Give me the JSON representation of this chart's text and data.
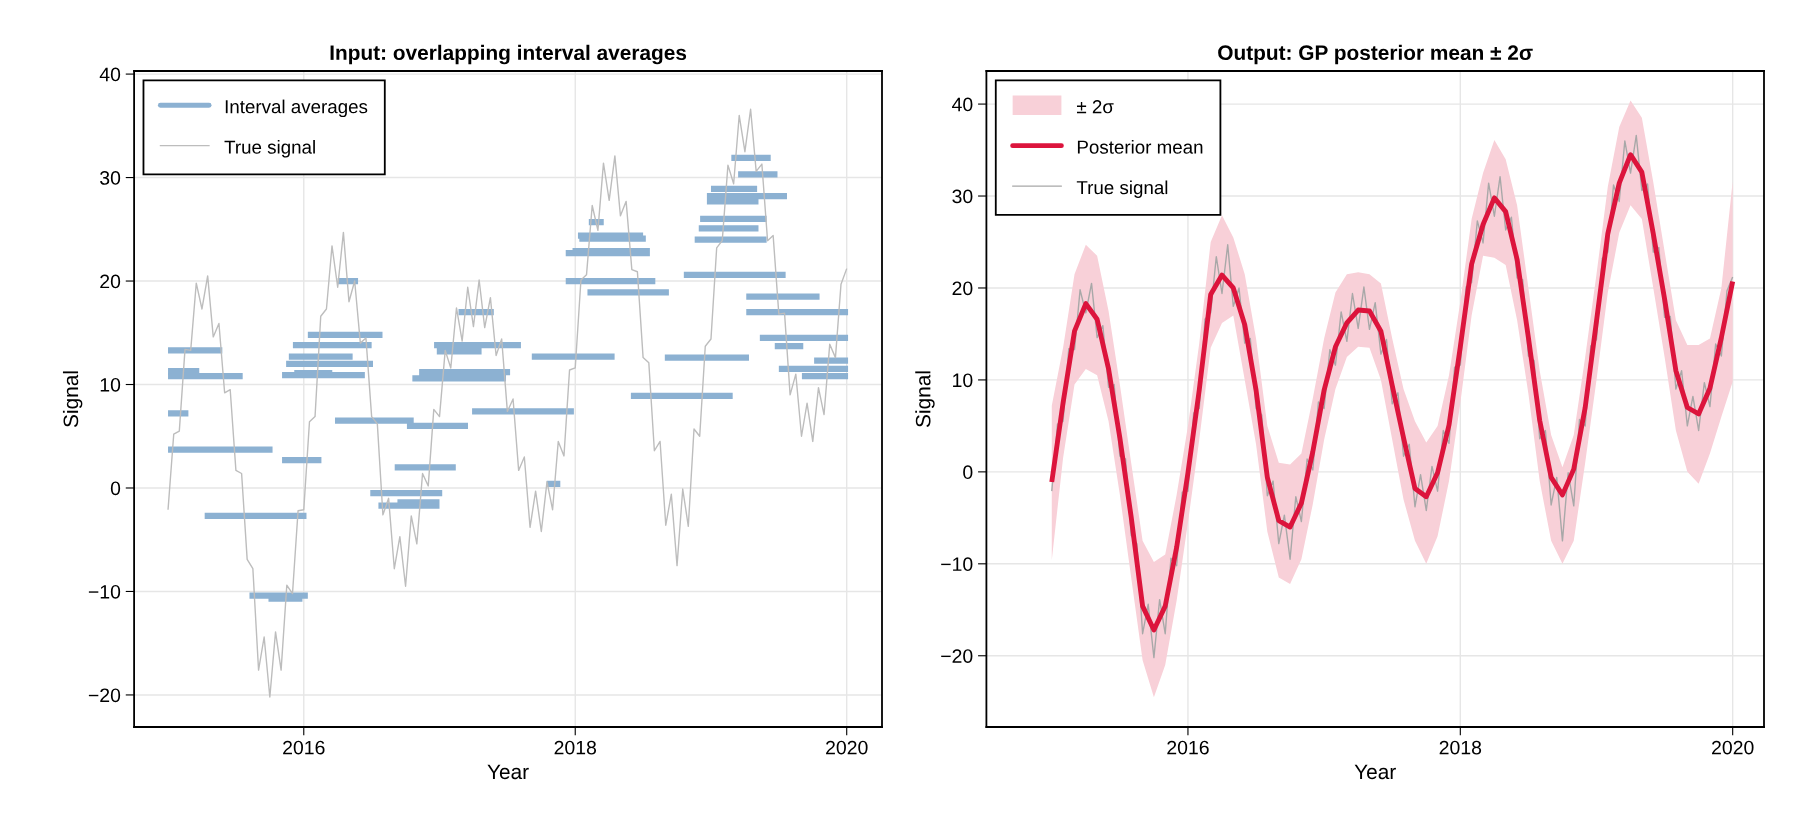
{
  "chart_data": [
    {
      "type": "line",
      "title": "Input: overlapping interval averages",
      "xlabel": "Year",
      "ylabel": "Signal",
      "xlim": [
        2014.75,
        2020.26
      ],
      "ylim": [
        -23.1,
        40.3
      ],
      "xticks": [
        2016,
        2018,
        2020
      ],
      "yticks": [
        -20,
        -10,
        0,
        10,
        20,
        30,
        40
      ],
      "grid": true,
      "legend": "top left",
      "series": [
        {
          "name": "Interval averages",
          "color": "#8cb1d2",
          "x": [
            2015.0,
            2015.4,
            null,
            2015.0,
            2015.23,
            null,
            2015.0,
            2015.55,
            null,
            2015.0,
            2015.15,
            null,
            2015.0,
            2015.77,
            null,
            2015.27,
            2016.02,
            null,
            2015.6,
            2016.03,
            null,
            2015.74,
            2015.99,
            null,
            2015.84,
            2016.13,
            null,
            2015.84,
            2016.45,
            null,
            2015.93,
            2016.21,
            null,
            2015.87,
            2016.51,
            null,
            2015.89,
            2016.36,
            null,
            2015.92,
            2016.5,
            null,
            2016.03,
            2016.58,
            null,
            2016.25,
            2016.4,
            null,
            2016.23,
            2016.81,
            null,
            2016.49,
            2017.02,
            null,
            2016.55,
            2017.0,
            null,
            2016.69,
            2017.0,
            null,
            2016.67,
            2017.12,
            null,
            2016.76,
            2017.21,
            null,
            2016.8,
            2017.49,
            null,
            2016.85,
            2017.52,
            null,
            2016.96,
            2017.6,
            null,
            2016.98,
            2017.31,
            null,
            2017.14,
            2017.4,
            null,
            2017.24,
            2017.99,
            null,
            2018.1,
            2018.21,
            null,
            2018.02,
            2018.5,
            null,
            2018.03,
            2018.52,
            null,
            2017.93,
            2018.55,
            null,
            2017.98,
            2018.55,
            null,
            2017.93,
            2018.59,
            null,
            2018.09,
            2018.69,
            null,
            2017.68,
            2018.29,
            null,
            2017.84,
            2018.18,
            null,
            2017.79,
            2017.89,
            null,
            2018.41,
            2019.16,
            null,
            2018.66,
            2019.28,
            null,
            2018.8,
            2019.55,
            null,
            2018.88,
            2019.41,
            null,
            2018.91,
            2019.35,
            null,
            2018.92,
            2019.41,
            null,
            2018.97,
            2019.56,
            null,
            2018.97,
            2019.35,
            null,
            2019.0,
            2019.34,
            null,
            2019.15,
            2019.44,
            null,
            2019.2,
            2019.49,
            null,
            2019.26,
            2019.8,
            null,
            2019.26,
            2020.01,
            null,
            2019.36,
            2020.01,
            null,
            2019.47,
            2019.68,
            null,
            2019.76,
            2020.01,
            null,
            2019.5,
            2020.01,
            null,
            2019.67,
            2020.01
          ],
          "values": [
            13.3,
            13.3,
            null,
            11.3,
            11.3,
            null,
            10.8,
            10.8,
            null,
            7.2,
            7.2,
            null,
            3.7,
            3.7,
            null,
            -2.7,
            -2.7,
            null,
            -10.4,
            -10.4,
            null,
            -10.7,
            -10.7,
            null,
            2.7,
            2.7,
            null,
            10.9,
            10.9,
            null,
            11.1,
            11.1,
            null,
            12.0,
            12.0,
            null,
            12.7,
            12.7,
            null,
            13.8,
            13.8,
            null,
            14.8,
            14.8,
            null,
            20.0,
            20.0,
            null,
            6.5,
            6.5,
            null,
            -0.5,
            -0.5,
            null,
            -1.7,
            -1.7,
            null,
            -1.4,
            -1.4,
            null,
            2.0,
            2.0,
            null,
            6.0,
            6.0,
            null,
            10.6,
            10.6,
            null,
            11.2,
            11.2,
            null,
            13.8,
            13.8,
            null,
            13.2,
            13.2,
            null,
            17.0,
            17.0,
            null,
            7.4,
            7.4,
            null,
            25.7,
            25.7,
            null,
            24.4,
            24.4,
            null,
            24.1,
            24.1,
            null,
            22.7,
            22.7,
            null,
            22.9,
            22.9,
            null,
            20.0,
            20.0,
            null,
            18.9,
            18.9,
            null,
            12.7,
            12.7,
            null,
            12.7,
            12.7,
            null,
            0.4,
            0.4,
            null,
            8.9,
            8.9,
            null,
            12.6,
            12.6,
            null,
            20.6,
            20.6,
            null,
            24.0,
            24.0,
            null,
            25.1,
            25.1,
            null,
            26.0,
            26.0,
            null,
            28.2,
            28.2,
            null,
            27.7,
            27.7,
            null,
            28.9,
            28.9,
            null,
            31.9,
            31.9,
            null,
            30.3,
            30.3,
            null,
            18.5,
            18.5,
            null,
            17.0,
            17.0,
            null,
            14.5,
            14.5,
            null,
            13.7,
            13.7,
            null,
            12.3,
            12.3,
            null,
            11.5,
            11.5,
            null,
            10.8,
            10.8
          ]
        },
        {
          "name": "True signal",
          "color": "#bdbdbd",
          "x": [
            2015.0,
            2015.042,
            2015.083,
            2015.125,
            2015.167,
            2015.208,
            2015.25,
            2015.292,
            2015.333,
            2015.375,
            2015.417,
            2015.458,
            2015.5,
            2015.542,
            2015.583,
            2015.625,
            2015.667,
            2015.708,
            2015.75,
            2015.792,
            2015.833,
            2015.875,
            2015.917,
            2015.958,
            2016.0,
            2016.042,
            2016.083,
            2016.125,
            2016.167,
            2016.208,
            2016.25,
            2016.292,
            2016.333,
            2016.375,
            2016.417,
            2016.458,
            2016.5,
            2016.542,
            2016.583,
            2016.625,
            2016.667,
            2016.708,
            2016.75,
            2016.792,
            2016.833,
            2016.875,
            2016.917,
            2016.958,
            2017.0,
            2017.042,
            2017.083,
            2017.125,
            2017.167,
            2017.208,
            2017.25,
            2017.292,
            2017.333,
            2017.375,
            2017.417,
            2017.458,
            2017.5,
            2017.542,
            2017.583,
            2017.625,
            2017.667,
            2017.708,
            2017.75,
            2017.792,
            2017.833,
            2017.875,
            2017.917,
            2017.958,
            2018.0,
            2018.042,
            2018.083,
            2018.125,
            2018.167,
            2018.208,
            2018.25,
            2018.292,
            2018.333,
            2018.375,
            2018.417,
            2018.458,
            2018.5,
            2018.542,
            2018.583,
            2018.625,
            2018.667,
            2018.708,
            2018.75,
            2018.792,
            2018.833,
            2018.875,
            2018.917,
            2018.958,
            2019.0,
            2019.042,
            2019.083,
            2019.125,
            2019.167,
            2019.208,
            2019.25,
            2019.292,
            2019.333,
            2019.375,
            2019.417,
            2019.458,
            2019.5,
            2019.542,
            2019.583,
            2019.625,
            2019.667,
            2019.708,
            2019.75,
            2019.792,
            2019.833,
            2019.875,
            2019.917,
            2019.958,
            2020.0
          ],
          "values": [
            -2.1,
            5.2,
            5.5,
            13.4,
            13.3,
            19.8,
            17.3,
            20.5,
            14.6,
            15.9,
            9.2,
            9.5,
            1.7,
            1.4,
            -6.9,
            -7.8,
            -17.6,
            -14.4,
            -20.2,
            -13.9,
            -17.6,
            -9.4,
            -10.2,
            -2.2,
            -2.1,
            6.4,
            6.9,
            16.6,
            17.3,
            23.4,
            19.4,
            24.7,
            18.0,
            20.0,
            14.0,
            14.5,
            6.9,
            6.2,
            -2.6,
            -1.0,
            -7.8,
            -4.7,
            -9.5,
            -2.7,
            -5.4,
            1.4,
            0.2,
            7.6,
            6.9,
            13.3,
            11.6,
            17.4,
            14.2,
            19.4,
            15.6,
            20.1,
            15.5,
            18.4,
            12.8,
            14.4,
            7.4,
            8.6,
            1.7,
            3.0,
            -3.8,
            -0.3,
            -4.2,
            0.6,
            -2.1,
            4.5,
            3.1,
            11.4,
            11.6,
            20.1,
            20.6,
            27.3,
            24.9,
            31.4,
            27.8,
            32.1,
            26.3,
            27.7,
            21.1,
            20.9,
            12.6,
            12.1,
            3.6,
            4.5,
            -3.6,
            -0.6,
            -7.5,
            -0.1,
            -3.7,
            5.7,
            5.0,
            13.7,
            14.4,
            23.2,
            23.9,
            31.2,
            29.4,
            36.0,
            32.5,
            36.6,
            30.6,
            31.3,
            23.9,
            24.4,
            16.8,
            16.9,
            9.0,
            11.0,
            5.0,
            8.2,
            4.5,
            9.7,
            7.1,
            13.9,
            12.6,
            19.7,
            21.2
          ]
        }
      ]
    },
    {
      "type": "line",
      "title": "Output: GP posterior mean ± 2σ",
      "xlabel": "Year",
      "ylabel": "Signal",
      "xlim": [
        2014.52,
        2020.23
      ],
      "ylim": [
        -27.75,
        43.6
      ],
      "xticks": [
        2016,
        2018,
        2020
      ],
      "yticks": [
        -20,
        -10,
        0,
        10,
        20,
        30,
        40
      ],
      "grid": true,
      "legend": "top left",
      "annotations": [
        "± 2σ"
      ],
      "series": [
        {
          "name": "Posterior mean",
          "color": "#dc143c",
          "x": [
            2015.0,
            2015.083,
            2015.167,
            2015.25,
            2015.333,
            2015.417,
            2015.5,
            2015.583,
            2015.667,
            2015.75,
            2015.833,
            2015.917,
            2016.0,
            2016.083,
            2016.167,
            2016.25,
            2016.333,
            2016.417,
            2016.5,
            2016.583,
            2016.667,
            2016.75,
            2016.833,
            2016.917,
            2017.0,
            2017.083,
            2017.167,
            2017.25,
            2017.333,
            2017.417,
            2017.5,
            2017.583,
            2017.667,
            2017.75,
            2017.833,
            2017.917,
            2018.0,
            2018.083,
            2018.167,
            2018.25,
            2018.333,
            2018.417,
            2018.5,
            2018.583,
            2018.667,
            2018.75,
            2018.833,
            2018.917,
            2019.0,
            2019.083,
            2019.167,
            2019.25,
            2019.333,
            2019.417,
            2019.5,
            2019.583,
            2019.667,
            2019.75,
            2019.833,
            2019.917,
            2020.0
          ],
          "values": [
            -1.1,
            7.5,
            15.3,
            18.3,
            16.6,
            11.2,
            3.7,
            -4.9,
            -14.6,
            -17.2,
            -14.6,
            -8.2,
            -0.1,
            8.9,
            19.3,
            21.4,
            20.0,
            16.0,
            8.9,
            -0.6,
            -5.3,
            -6.0,
            -3.4,
            2.2,
            8.9,
            13.6,
            16.2,
            17.6,
            17.5,
            15.3,
            9.4,
            3.7,
            -1.8,
            -2.7,
            -0.1,
            5.1,
            13.6,
            22.6,
            26.9,
            29.8,
            28.3,
            23.1,
            14.6,
            5.6,
            -0.6,
            -2.5,
            0.3,
            7.0,
            16.4,
            25.9,
            31.4,
            34.5,
            32.6,
            25.9,
            18.8,
            11.0,
            7.0,
            6.3,
            9.1,
            14.6,
            20.7
          ],
          "upper": [
            7.2,
            13.5,
            21.5,
            24.7,
            23.5,
            17.5,
            9.5,
            1.0,
            -7.5,
            -9.8,
            -9.0,
            -2.5,
            5.0,
            14.0,
            25.0,
            27.9,
            25.5,
            21.5,
            14.5,
            5.0,
            1.0,
            0.8,
            2.0,
            8.0,
            14.5,
            19.5,
            21.5,
            21.7,
            21.5,
            20.5,
            14.5,
            9.0,
            5.5,
            3.2,
            5.0,
            10.5,
            18.5,
            27.5,
            32.5,
            36.1,
            34.0,
            29.0,
            20.0,
            11.0,
            4.0,
            0.5,
            4.0,
            12.5,
            21.5,
            31.0,
            37.5,
            40.4,
            38.5,
            31.5,
            24.0,
            16.5,
            13.8,
            13.8,
            14.5,
            20.0,
            31.6
          ],
          "lower": [
            -9.6,
            1.5,
            9.5,
            11.2,
            10.5,
            5.5,
            -2.5,
            -11.5,
            -20.5,
            -24.5,
            -21.0,
            -14.0,
            -5.5,
            3.5,
            13.5,
            16.2,
            17.0,
            10.0,
            3.0,
            -6.5,
            -11.5,
            -12.2,
            -9.5,
            -3.5,
            3.5,
            9.0,
            12.5,
            13.6,
            13.5,
            10.0,
            3.5,
            -3.0,
            -7.5,
            -10.0,
            -7.0,
            -1.0,
            7.5,
            17.0,
            23.5,
            23.3,
            22.5,
            16.5,
            8.5,
            -1.0,
            -7.5,
            -10.0,
            -7.5,
            1.0,
            10.0,
            19.5,
            26.0,
            29.0,
            27.5,
            20.0,
            12.5,
            4.5,
            0.0,
            -1.3,
            2.0,
            6.0,
            9.8
          ]
        },
        {
          "name": "True signal",
          "color": "#a8a8a8",
          "x": [
            2015.0,
            2015.042,
            2015.083,
            2015.125,
            2015.167,
            2015.208,
            2015.25,
            2015.292,
            2015.333,
            2015.375,
            2015.417,
            2015.458,
            2015.5,
            2015.542,
            2015.583,
            2015.625,
            2015.667,
            2015.708,
            2015.75,
            2015.792,
            2015.833,
            2015.875,
            2015.917,
            2015.958,
            2016.0,
            2016.042,
            2016.083,
            2016.125,
            2016.167,
            2016.208,
            2016.25,
            2016.292,
            2016.333,
            2016.375,
            2016.417,
            2016.458,
            2016.5,
            2016.542,
            2016.583,
            2016.625,
            2016.667,
            2016.708,
            2016.75,
            2016.792,
            2016.833,
            2016.875,
            2016.917,
            2016.958,
            2017.0,
            2017.042,
            2017.083,
            2017.125,
            2017.167,
            2017.208,
            2017.25,
            2017.292,
            2017.333,
            2017.375,
            2017.417,
            2017.458,
            2017.5,
            2017.542,
            2017.583,
            2017.625,
            2017.667,
            2017.708,
            2017.75,
            2017.792,
            2017.833,
            2017.875,
            2017.917,
            2017.958,
            2018.0,
            2018.042,
            2018.083,
            2018.125,
            2018.167,
            2018.208,
            2018.25,
            2018.292,
            2018.333,
            2018.375,
            2018.417,
            2018.458,
            2018.5,
            2018.542,
            2018.583,
            2018.625,
            2018.667,
            2018.708,
            2018.75,
            2018.792,
            2018.833,
            2018.875,
            2018.917,
            2018.958,
            2019.0,
            2019.042,
            2019.083,
            2019.125,
            2019.167,
            2019.208,
            2019.25,
            2019.292,
            2019.333,
            2019.375,
            2019.417,
            2019.458,
            2019.5,
            2019.542,
            2019.583,
            2019.625,
            2019.667,
            2019.708,
            2019.75,
            2019.792,
            2019.833,
            2019.875,
            2019.917,
            2019.958,
            2020.0
          ],
          "values": [
            -2.1,
            5.2,
            5.5,
            13.4,
            13.3,
            19.8,
            17.3,
            20.5,
            14.6,
            15.9,
            9.2,
            9.5,
            1.7,
            1.4,
            -6.9,
            -7.8,
            -17.6,
            -14.4,
            -20.2,
            -13.9,
            -17.6,
            -9.4,
            -10.2,
            -2.2,
            -2.1,
            6.4,
            6.9,
            16.6,
            17.3,
            23.4,
            19.4,
            24.7,
            18.0,
            20.0,
            14.0,
            14.5,
            6.9,
            6.2,
            -2.6,
            -1.0,
            -7.8,
            -4.7,
            -9.5,
            -2.7,
            -5.4,
            1.4,
            0.2,
            7.6,
            6.9,
            13.3,
            11.6,
            17.4,
            14.2,
            19.4,
            15.6,
            20.1,
            15.5,
            18.4,
            12.8,
            14.4,
            7.4,
            8.6,
            1.7,
            3.0,
            -3.8,
            -0.3,
            -4.2,
            0.6,
            -2.1,
            4.5,
            3.1,
            11.4,
            11.6,
            20.1,
            20.6,
            27.3,
            24.9,
            31.4,
            27.8,
            32.1,
            26.3,
            27.7,
            21.1,
            20.9,
            12.6,
            12.1,
            3.6,
            4.5,
            -3.6,
            -0.6,
            -7.5,
            -0.1,
            -3.7,
            5.7,
            5.0,
            13.7,
            14.4,
            23.2,
            23.9,
            31.2,
            29.4,
            36.0,
            32.5,
            36.6,
            30.6,
            31.3,
            23.9,
            24.4,
            16.8,
            16.9,
            9.0,
            11.0,
            5.0,
            8.2,
            4.5,
            9.7,
            7.1,
            13.9,
            12.6,
            19.7,
            21.2
          ]
        }
      ]
    }
  ]
}
